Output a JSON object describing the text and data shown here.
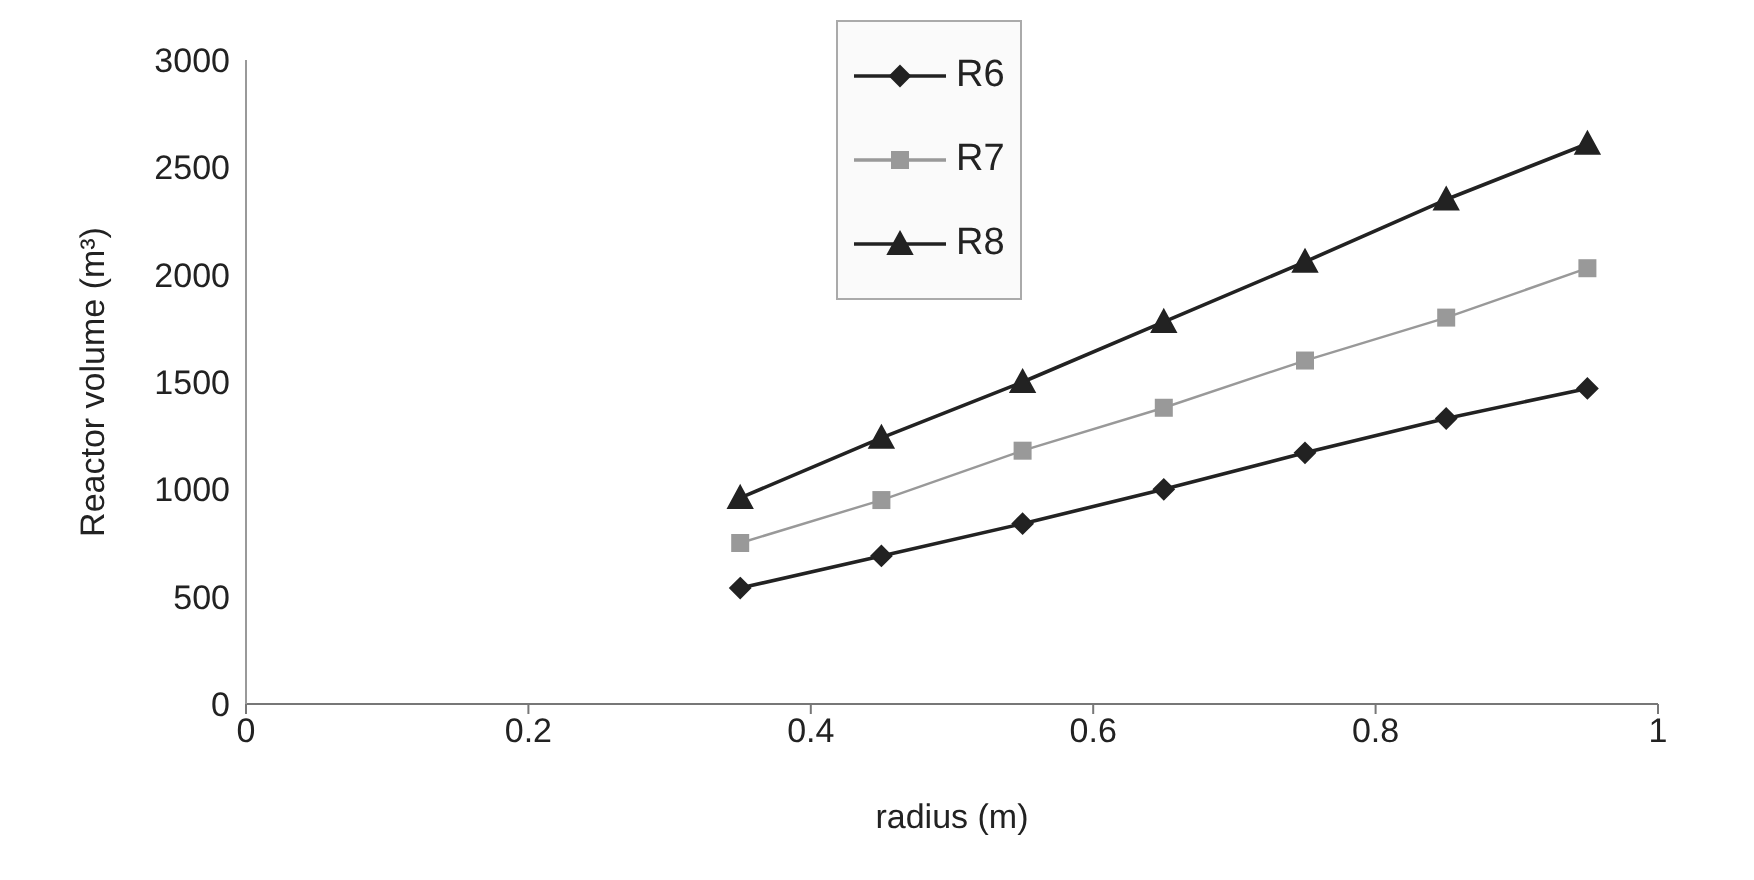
{
  "chart_data": {
    "type": "line",
    "xlabel": "radius (m)",
    "ylabel": "Reactor volume (m³)",
    "x": [
      0.35,
      0.45,
      0.55,
      0.65,
      0.75,
      0.85,
      0.95
    ],
    "series": [
      {
        "name": "R6",
        "color": "#222222",
        "marker": "diamond",
        "values": [
          540,
          690,
          840,
          1000,
          1170,
          1330,
          1470
        ]
      },
      {
        "name": "R7",
        "color": "#999999",
        "marker": "square",
        "values": [
          750,
          950,
          1180,
          1380,
          1600,
          1800,
          2030
        ]
      },
      {
        "name": "R8",
        "color": "#222222",
        "marker": "triangle",
        "values": [
          960,
          1240,
          1500,
          1780,
          2060,
          2350,
          2610
        ]
      }
    ],
    "xlim": [
      0,
      1
    ],
    "xticks": [
      0,
      0.2,
      0.4,
      0.6,
      0.8,
      1
    ],
    "ylim": [
      0,
      3000
    ],
    "yticks": [
      0,
      500,
      1000,
      1500,
      2000,
      2500,
      3000
    ],
    "grid": false,
    "legend": "top",
    "line_style": "solid"
  }
}
